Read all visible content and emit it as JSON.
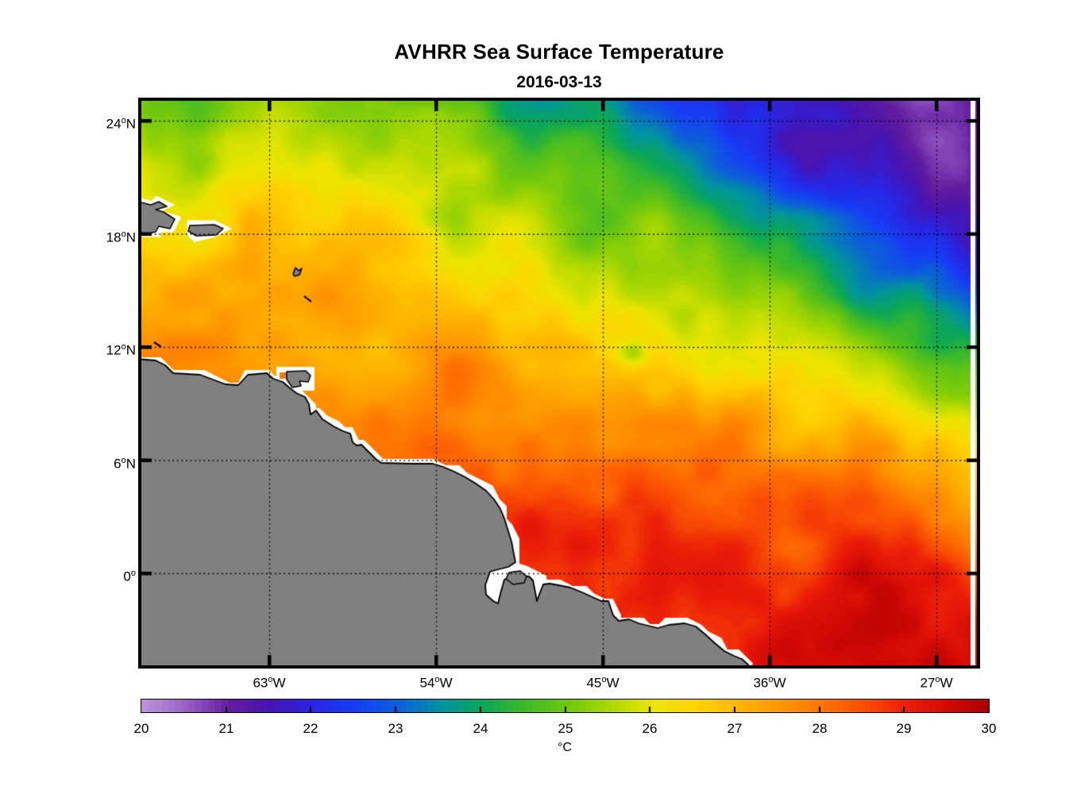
{
  "chart_data": {
    "type": "heatmap",
    "title": "AVHRR Sea Surface Temperature",
    "date": "2016-03-13",
    "variable": "Sea Surface Temperature",
    "units": "°C",
    "x_axis": {
      "kind": "longitude",
      "range_deg_west": [
        69.9,
        24.8
      ],
      "ticks": [
        {
          "value": "63",
          "deg": "o",
          "suffix": "W"
        },
        {
          "value": "54",
          "deg": "o",
          "suffix": "W"
        },
        {
          "value": "45",
          "deg": "o",
          "suffix": "W"
        },
        {
          "value": "36",
          "deg": "o",
          "suffix": "W"
        },
        {
          "value": "27",
          "deg": "o",
          "suffix": "W"
        }
      ]
    },
    "y_axis": {
      "kind": "latitude",
      "range_deg": [
        -4.9,
        25.1
      ],
      "ticks": [
        {
          "value": "24",
          "deg": "o",
          "suffix": "N"
        },
        {
          "value": "18",
          "deg": "o",
          "suffix": "N"
        },
        {
          "value": "12",
          "deg": "o",
          "suffix": "N"
        },
        {
          "value": "6",
          "deg": "o",
          "suffix": "N"
        },
        {
          "value": "0",
          "deg": "o",
          "suffix": ""
        }
      ]
    },
    "grid": {
      "style": "dotted",
      "color": "#000000"
    },
    "colorbar": {
      "min": 20,
      "max": 30,
      "tick_labels": [
        "20",
        "21",
        "22",
        "23",
        "24",
        "25",
        "26",
        "27",
        "28",
        "29",
        "30"
      ],
      "units_label": "°C",
      "orientation": "horizontal",
      "stops": [
        [
          20.0,
          "#BB92D8"
        ],
        [
          20.5,
          "#965FC4"
        ],
        [
          21.0,
          "#621B9E"
        ],
        [
          21.5,
          "#4614B4"
        ],
        [
          22.0,
          "#2826E4"
        ],
        [
          22.5,
          "#163EF5"
        ],
        [
          23.0,
          "#0C60D8"
        ],
        [
          23.5,
          "#00949E"
        ],
        [
          24.0,
          "#0CA856"
        ],
        [
          24.5,
          "#3EBA26"
        ],
        [
          25.0,
          "#70C80E"
        ],
        [
          25.5,
          "#ACD800"
        ],
        [
          26.0,
          "#EBE600"
        ],
        [
          26.5,
          "#FFD400"
        ],
        [
          27.0,
          "#FFB600"
        ],
        [
          27.5,
          "#FF9800"
        ],
        [
          28.0,
          "#FF7400"
        ],
        [
          28.5,
          "#FA4C04"
        ],
        [
          29.0,
          "#EA1C08"
        ],
        [
          29.5,
          "#D00804"
        ],
        [
          30.0,
          "#A40000"
        ]
      ]
    },
    "map_colors": {
      "land": "#808080",
      "coastline": "#000000",
      "missing_data": "#FFFFFF",
      "background": "#FFFFFF"
    },
    "sst_grid": {
      "comment_units": "degC, estimated from pixel colors; null = land",
      "lons": [
        -68,
        -63,
        -58,
        -53,
        -48,
        -43,
        -38,
        -33,
        -28,
        -25
      ],
      "lats": [
        24,
        20,
        16,
        12,
        8,
        4,
        0
      ],
      "values_degC": [
        [
          25.0,
          24.6,
          24.4,
          24.3,
          24.0,
          23.2,
          22.3,
          21.8,
          21.4,
          21.2
        ],
        [
          26.2,
          25.8,
          25.3,
          24.9,
          24.6,
          23.8,
          22.6,
          21.9,
          21.5,
          21.3
        ],
        [
          26.8,
          26.5,
          26.2,
          25.8,
          25.3,
          24.6,
          23.4,
          22.4,
          21.9,
          21.7
        ],
        [
          27.3,
          27.1,
          26.8,
          26.4,
          26.0,
          25.2,
          24.6,
          24.0,
          23.3,
          23.0
        ],
        [
          null,
          27.6,
          27.3,
          26.8,
          26.5,
          26.1,
          25.9,
          25.6,
          25.5,
          25.4
        ],
        [
          null,
          null,
          27.9,
          27.8,
          28.0,
          27.5,
          27.2,
          27.1,
          27.3,
          27.4
        ],
        [
          null,
          null,
          null,
          null,
          28.6,
          28.4,
          28.5,
          28.6,
          28.7,
          28.8
        ]
      ]
    }
  }
}
